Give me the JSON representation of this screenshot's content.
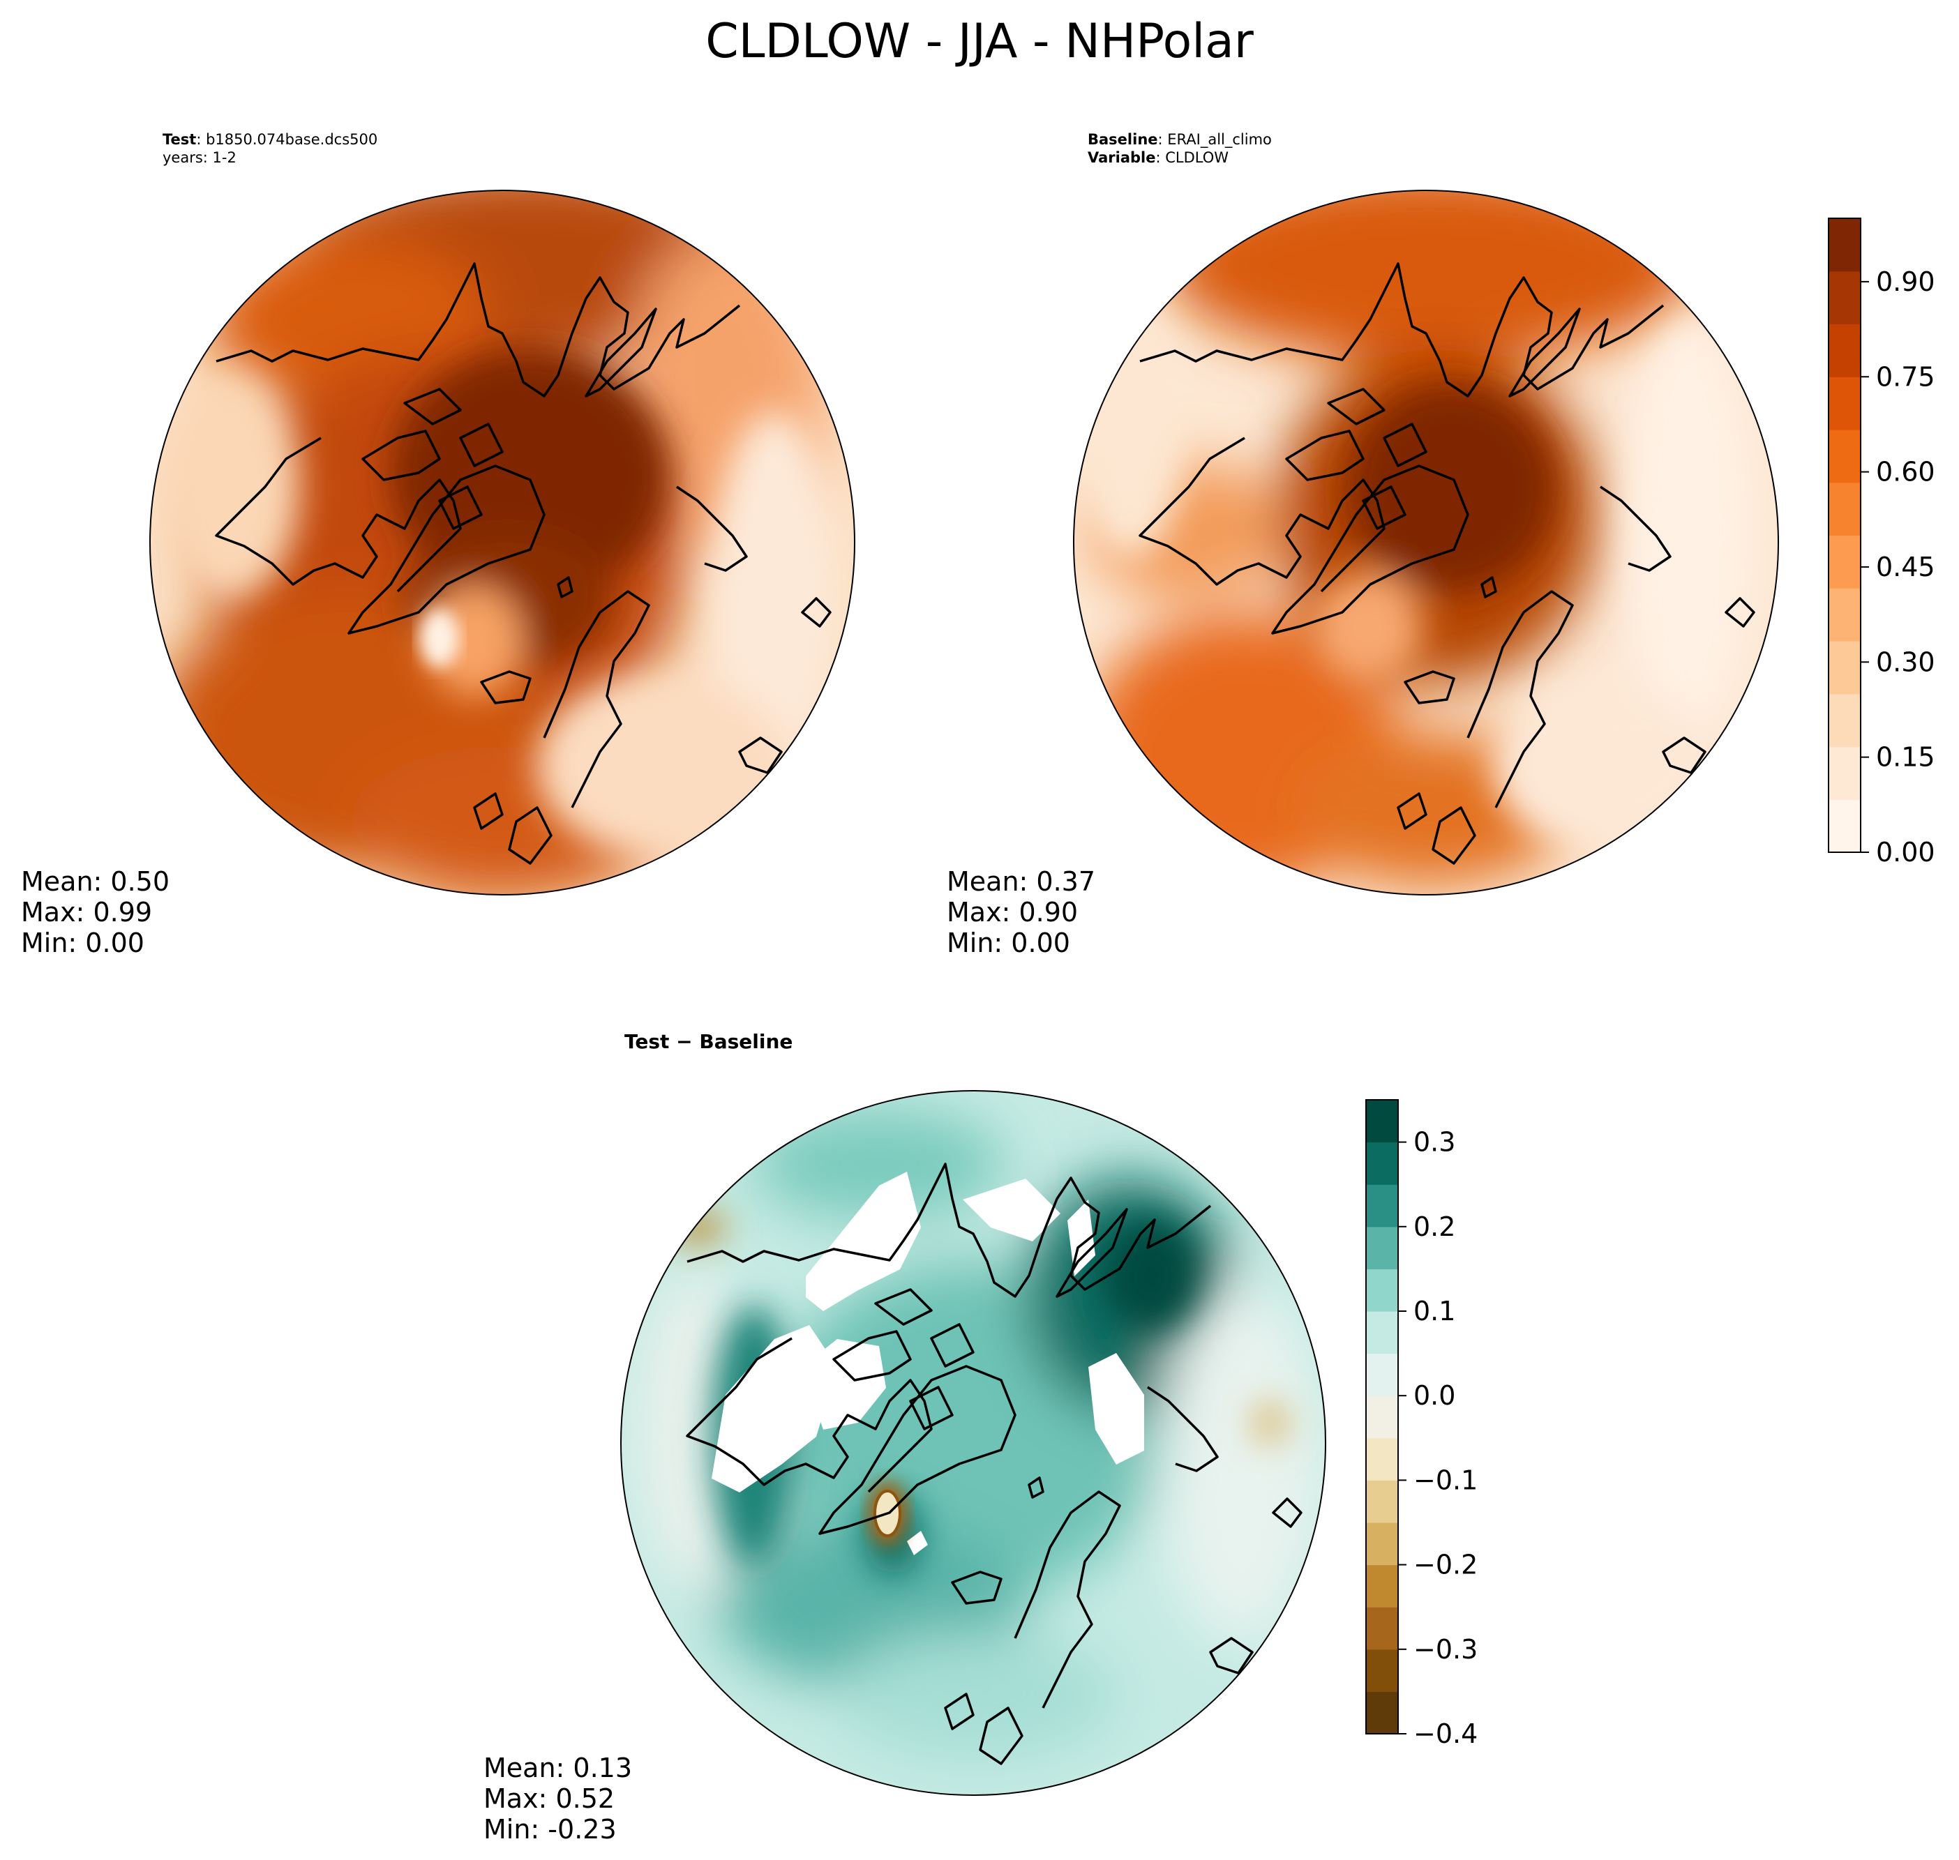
{
  "title": "CLDLOW - JJA - NHPolar",
  "panels": {
    "test": {
      "label_key": "Test",
      "label_value": ": b1850.074base.dcs500",
      "line2": "years: 1-2",
      "mean": "Mean:  0.50",
      "max": "Max:  0.99",
      "min": "Min:  0.00"
    },
    "baseline": {
      "label_key": "Baseline",
      "label_value": ": ERAI_all_climo",
      "var_key": "Variable",
      "var_value": ": CLDLOW",
      "mean": "Mean:  0.37",
      "max": "Max:  0.90",
      "min": "Min:  0.00"
    },
    "diff": {
      "title": "Test − Baseline",
      "mean": "Mean:  0.13",
      "max": "Max:  0.52",
      "min": "Min: -0.23"
    }
  },
  "chart_data": [
    {
      "type": "heatmap",
      "projection": "north-polar-stereographic",
      "name": "Test",
      "colormap": "Oranges",
      "clim": [
        0,
        1.0
      ],
      "stats": {
        "mean": 0.5,
        "max": 0.99,
        "min": 0.0
      }
    },
    {
      "type": "heatmap",
      "projection": "north-polar-stereographic",
      "name": "Baseline",
      "colormap": "Oranges",
      "clim": [
        0,
        1.0
      ],
      "stats": {
        "mean": 0.37,
        "max": 0.9,
        "min": 0.0
      }
    },
    {
      "type": "heatmap",
      "projection": "north-polar-stereographic",
      "name": "Test − Baseline",
      "colormap": "BrBG",
      "clim": [
        -0.4,
        0.35
      ],
      "stats": {
        "mean": 0.13,
        "max": 0.52,
        "min": -0.23
      }
    }
  ],
  "colorbars": {
    "main": {
      "ticks": [
        "0.00",
        "0.15",
        "0.30",
        "0.45",
        "0.60",
        "0.75",
        "0.90"
      ],
      "tick_values": [
        0,
        0.15,
        0.3,
        0.45,
        0.6,
        0.75,
        0.9
      ],
      "range": [
        0,
        1.0
      ],
      "colors": [
        "#fff5eb",
        "#fee9d4",
        "#fddbb8",
        "#fdc997",
        "#fdb374",
        "#fd9c51",
        "#f8832e",
        "#ee6b14",
        "#de5507",
        "#c54102",
        "#a63603",
        "#7f2704"
      ]
    },
    "diff": {
      "ticks": [
        "0.3",
        "0.2",
        "0.1",
        "0.0",
        "−0.1",
        "−0.2",
        "−0.3",
        "−0.4"
      ],
      "tick_values": [
        0.3,
        0.2,
        0.1,
        0.0,
        -0.1,
        -0.2,
        -0.3,
        -0.4
      ],
      "range": [
        -0.4,
        0.35
      ],
      "colors": [
        "#5e3b08",
        "#824f0a",
        "#a6671c",
        "#c0892f",
        "#d7b061",
        "#e7cd8f",
        "#f3e6c2",
        "#f2f0e4",
        "#e4f2ef",
        "#c4eae3",
        "#91d6ca",
        "#5ab4a8",
        "#2a8f84",
        "#0b6d62",
        "#004a3f"
      ]
    }
  }
}
